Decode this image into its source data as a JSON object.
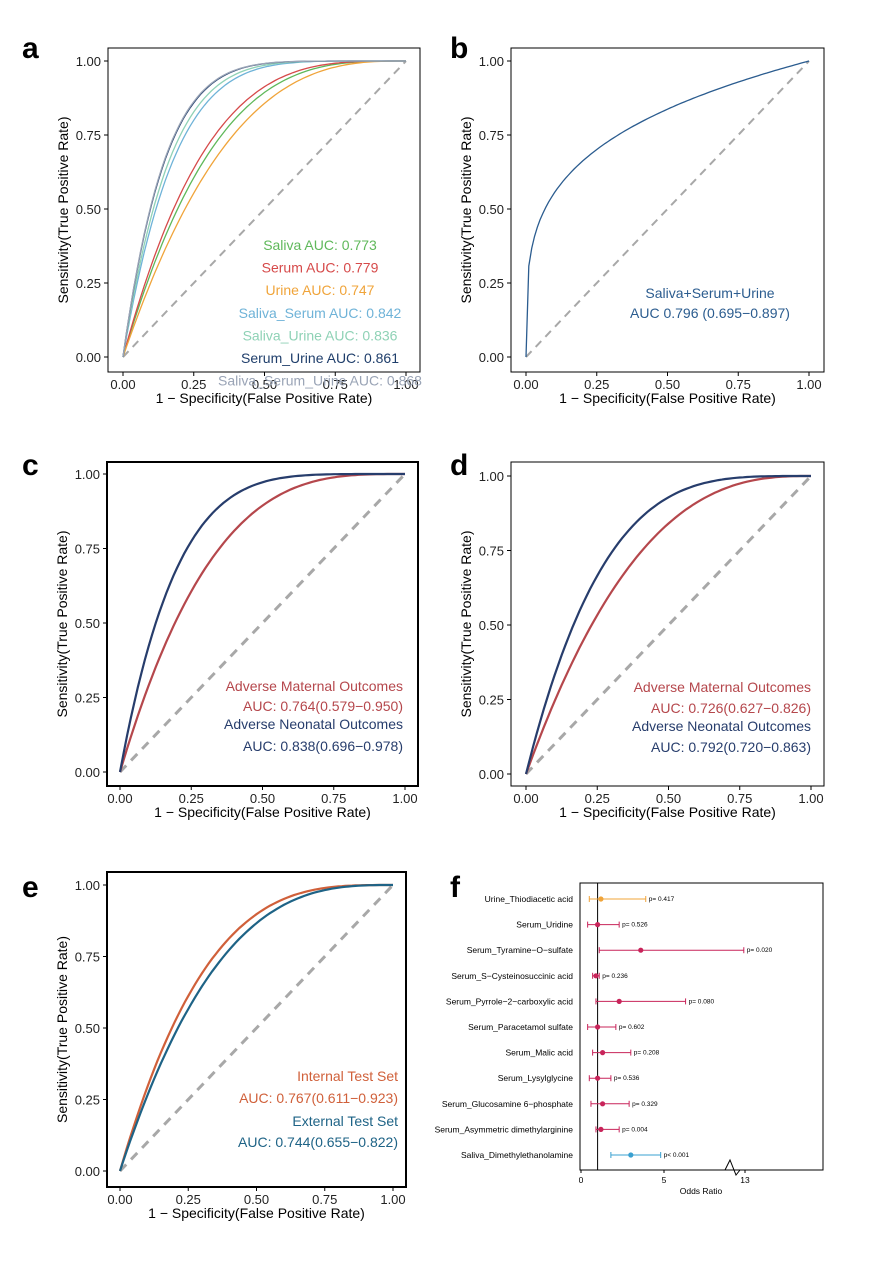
{
  "chart_data": [
    {
      "panel": "a",
      "type": "line",
      "xlabel": "1 − Specificity(False Positive Rate)",
      "ylabel": "Sensitivity(True Positive Rate)",
      "xlim": [
        0,
        1
      ],
      "ylim": [
        0,
        1
      ],
      "x_ticks": [
        "0.00",
        "0.25",
        "0.50",
        "0.75",
        "1.00"
      ],
      "y_ticks": [
        "0.00",
        "0.25",
        "0.50",
        "0.75",
        "1.00"
      ],
      "series": [
        {
          "name": "Saliva",
          "auc": 0.773,
          "legend": "Saliva  AUC: 0.773",
          "color": "#5fb85a"
        },
        {
          "name": "Serum",
          "auc": 0.779,
          "legend": "Serum  AUC: 0.779",
          "color": "#d64a4a"
        },
        {
          "name": "Urine",
          "auc": 0.747,
          "legend": "Urine  AUC: 0.747",
          "color": "#f0a43a"
        },
        {
          "name": "Saliva_Serum",
          "auc": 0.842,
          "legend": "Saliva_Serum  AUC: 0.842",
          "color": "#6fb3d8"
        },
        {
          "name": "Saliva_Urine",
          "auc": 0.836,
          "legend": "Saliva_Urine  AUC: 0.836",
          "color": "#8fd2b6"
        },
        {
          "name": "Serum_Urine",
          "auc": 0.861,
          "legend": "Serum_Urine  AUC: 0.861",
          "color": "#1f3e6b"
        },
        {
          "name": "Saliva_Serum_Urine",
          "auc": 0.868,
          "legend": "Saliva_Serum_Urine  AUC: 0.868",
          "color": "#9aa4b6"
        }
      ]
    },
    {
      "panel": "b",
      "type": "line",
      "xlabel": "1 − Specificity(False Positive Rate)",
      "ylabel": "Sensitivity(True Positive Rate)",
      "xlim": [
        0,
        1
      ],
      "ylim": [
        0,
        1
      ],
      "x_ticks": [
        "0.00",
        "0.25",
        "0.50",
        "0.75",
        "1.00"
      ],
      "y_ticks": [
        "0.00",
        "0.25",
        "0.50",
        "0.75",
        "1.00"
      ],
      "series": [
        {
          "name": "Saliva+Serum+Urine",
          "auc": 0.796,
          "legend_lines": [
            "Saliva+Serum+Urine",
            "AUC 0.796 (0.695−0.897)"
          ],
          "color": "#2b5c8f"
        }
      ]
    },
    {
      "panel": "c",
      "type": "line",
      "xlabel": "1 − Specificity(False Positive Rate)",
      "ylabel": "Sensitivity(True Positive Rate)",
      "xlim": [
        0,
        1
      ],
      "ylim": [
        0,
        1
      ],
      "x_ticks": [
        "0.00",
        "0.25",
        "0.50",
        "0.75",
        "1.00"
      ],
      "y_ticks": [
        "0.00",
        "0.25",
        "0.50",
        "0.75",
        "1.00"
      ],
      "series": [
        {
          "name": "Adverse Maternal Outcomes",
          "auc": 0.764,
          "legend_lines": [
            "Adverse Maternal Outcomes",
            "AUC: 0.764(0.579−0.950)"
          ],
          "color": "#b5474c"
        },
        {
          "name": "Adverse Neonatal Outcomes",
          "auc": 0.838,
          "legend_lines": [
            "Adverse Neonatal Outcomes",
            "AUC: 0.838(0.696−0.978)"
          ],
          "color": "#273d6c"
        }
      ]
    },
    {
      "panel": "d",
      "type": "line",
      "xlabel": "1 − Specificity(False Positive Rate)",
      "ylabel": "Sensitivity(True Positive Rate)",
      "xlim": [
        0,
        1
      ],
      "ylim": [
        0,
        1
      ],
      "x_ticks": [
        "0.00",
        "0.25",
        "0.50",
        "0.75",
        "1.00"
      ],
      "y_ticks": [
        "0.00",
        "0.25",
        "0.50",
        "0.75",
        "1.00"
      ],
      "series": [
        {
          "name": "Adverse Maternal Outcomes",
          "auc": 0.726,
          "legend_lines": [
            "Adverse Maternal Outcomes",
            "AUC: 0.726(0.627−0.826)"
          ],
          "color": "#b5474c"
        },
        {
          "name": "Adverse Neonatal Outcomes",
          "auc": 0.792,
          "legend_lines": [
            "Adverse Neonatal Outcomes",
            "AUC: 0.792(0.720−0.863)"
          ],
          "color": "#273d6c"
        }
      ]
    },
    {
      "panel": "e",
      "type": "line",
      "xlabel": "1 − Specificity(False Positive Rate)",
      "ylabel": "Sensitivity(True Positive Rate)",
      "xlim": [
        0,
        1
      ],
      "ylim": [
        0,
        1
      ],
      "x_ticks": [
        "0.00",
        "0.25",
        "0.50",
        "0.75",
        "1.00"
      ],
      "y_ticks": [
        "0.00",
        "0.25",
        "0.50",
        "0.75",
        "1.00"
      ],
      "series": [
        {
          "name": "Internal Test Set",
          "auc": 0.767,
          "legend_lines": [
            "Internal Test Set",
            "AUC: 0.767(0.611−0.923)"
          ],
          "color": "#d0603a"
        },
        {
          "name": "External Test Set",
          "auc": 0.744,
          "legend_lines": [
            "External Test Set",
            "AUC: 0.744(0.655−0.822)"
          ],
          "color": "#1e6386"
        }
      ]
    },
    {
      "panel": "f",
      "type": "forest",
      "xlabel": "Odds Ratio",
      "x_ticks": [
        "0",
        "5",
        "13"
      ],
      "reference_line": 1,
      "rows": [
        {
          "label": "Urine_Thiodiacetic acid",
          "or": 1.2,
          "lo": 0.5,
          "hi": 3.9,
          "p": "p= 0.417",
          "color": "#f0a43a"
        },
        {
          "label": "Serum_Uridine",
          "or": 1.0,
          "lo": 0.4,
          "hi": 2.3,
          "p": "p= 0.526",
          "color": "#c8245a"
        },
        {
          "label": "Serum_Tyramine−O−sulfate",
          "or": 3.6,
          "lo": 1.1,
          "hi": 12.4,
          "p": "p= 0.020",
          "color": "#c8245a"
        },
        {
          "label": "Serum_S−Cysteinosuccinic acid",
          "or": 0.9,
          "lo": 0.7,
          "hi": 1.1,
          "p": "p= 0.236",
          "color": "#c8245a"
        },
        {
          "label": "Serum_Pyrrole−2−carboxylic acid",
          "or": 2.3,
          "lo": 0.9,
          "hi": 6.3,
          "p": "p= 0.080",
          "color": "#c8245a"
        },
        {
          "label": "Serum_Paracetamol sulfate",
          "or": 1.0,
          "lo": 0.4,
          "hi": 2.1,
          "p": "p= 0.602",
          "color": "#c8245a"
        },
        {
          "label": "Serum_Malic acid",
          "or": 1.3,
          "lo": 0.7,
          "hi": 3.0,
          "p": "p= 0.208",
          "color": "#c8245a"
        },
        {
          "label": "Serum_Lysylglycine",
          "or": 1.0,
          "lo": 0.5,
          "hi": 1.8,
          "p": "p= 0.536",
          "color": "#c8245a"
        },
        {
          "label": "Serum_Glucosamine 6−phosphate",
          "or": 1.3,
          "lo": 0.6,
          "hi": 2.9,
          "p": "p= 0.329",
          "color": "#c8245a"
        },
        {
          "label": "Serum_Asymmetric dimethylarginine",
          "or": 1.2,
          "lo": 0.9,
          "hi": 2.3,
          "p": "p= 0.004",
          "color": "#c8245a"
        },
        {
          "label": "Saliva_Dimethylethanolamine",
          "or": 3.0,
          "lo": 1.8,
          "hi": 4.8,
          "p": "p< 0.001",
          "color": "#3aa0d0"
        }
      ]
    }
  ]
}
